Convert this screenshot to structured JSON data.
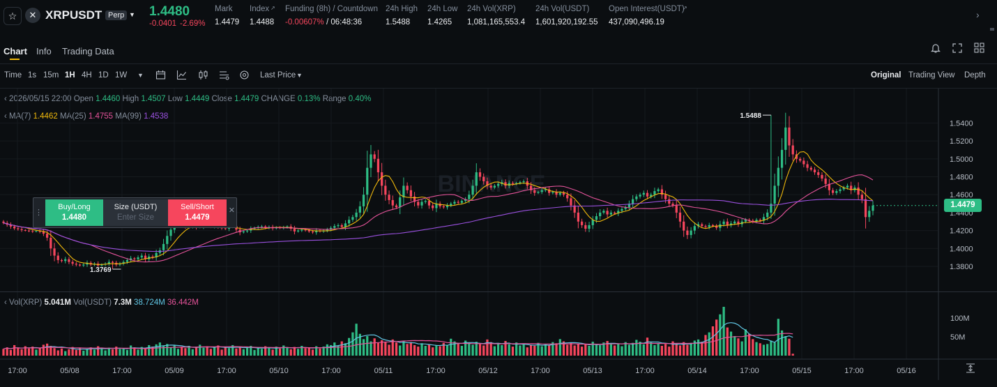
{
  "header": {
    "symbol": "XRPUSDT",
    "contract_type": "Perp",
    "last_price": "1.4480",
    "change_abs": "-0.0401",
    "change_pct": "-2.69%",
    "stats": [
      {
        "label": "Mark",
        "value": "1.4479"
      },
      {
        "label": "Index",
        "value": "1.4488"
      },
      {
        "label": "Funding (8h) / Countdown",
        "value": "-0.00607%",
        "value2": "/ 06:48:36"
      },
      {
        "label": "24h High",
        "value": "1.5488"
      },
      {
        "label": "24h Low",
        "value": "1.4265"
      },
      {
        "label": "24h Vol(XRP)",
        "value": "1,081,165,553.4"
      },
      {
        "label": "24h Vol(USDT)",
        "value": "1,601,920,192.55"
      },
      {
        "label": "Open Interest(USDT)",
        "value": "437,090,496.19"
      }
    ]
  },
  "tabs": [
    "Chart",
    "Info",
    "Trading Data"
  ],
  "toolbar": {
    "intervals": [
      "Time",
      "1s",
      "15m",
      "1H",
      "4H",
      "1D",
      "1W"
    ],
    "active_interval": "1H",
    "price_type": "Last Price",
    "views": [
      "Original",
      "Trading View",
      "Depth"
    ],
    "active_view": "Original"
  },
  "ohlc": {
    "date": "2026/05/15 22:00",
    "open_label": "Open",
    "open": "1.4460",
    "high_label": "High",
    "high": "1.4507",
    "low_label": "Low",
    "low": "1.4449",
    "close_label": "Close",
    "close": "1.4479",
    "change_label": "CHANGE",
    "change": "0.13%",
    "range_label": "Range",
    "range": "0.40%"
  },
  "ma": {
    "ma7_label": "MA(7)",
    "ma7": "1.4462",
    "ma25_label": "MA(25)",
    "ma25": "1.4755",
    "ma99_label": "MA(99)",
    "ma99": "1.4538"
  },
  "volume_legend": {
    "vol_xrp_label": "Vol(XRP)",
    "vol_xrp": "5.041M",
    "vol_usdt_label": "Vol(USDT)",
    "vol_usdt": "7.3M",
    "ma1": "38.724M",
    "ma2": "36.442M"
  },
  "trade_widget": {
    "buy_label": "Buy/Long",
    "buy_price": "1.4480",
    "size_label": "Size (USDT)",
    "size_placeholder": "Enter Size",
    "sell_label": "Sell/Short",
    "sell_price": "1.4479"
  },
  "price_axis": [
    "1.5400",
    "1.5200",
    "1.5000",
    "1.4800",
    "1.4600",
    "1.4400",
    "1.4200",
    "1.4000",
    "1.3800"
  ],
  "volume_axis": [
    "100M",
    "50M"
  ],
  "time_axis": [
    "17:00",
    "05/08",
    "17:00",
    "05/09",
    "17:00",
    "05/10",
    "17:00",
    "05/11",
    "17:00",
    "05/12",
    "17:00",
    "05/13",
    "17:00",
    "05/14",
    "17:00",
    "05/15",
    "17:00",
    "05/16"
  ],
  "current_price_tag": "1.4479",
  "high_marker": "1.5488",
  "low_marker": "1.3769",
  "watermark": "BINANCE",
  "colors": {
    "up": "#2ebd85",
    "down": "#f6465d",
    "ma7": "#f0b90b",
    "ma25": "#e5539a",
    "ma99": "#9b51e0",
    "vol_ma1": "#61c6e5",
    "vol_ma2": "#e5539a"
  },
  "chart_data": {
    "type": "candlestick",
    "interval": "1H",
    "x_start": "05/07 12:00",
    "ylim": [
      1.366,
      1.559
    ],
    "volume_ylim": [
      0,
      130000000
    ],
    "close": [
      1.4285,
      1.4265,
      1.4245,
      1.4225,
      1.4215,
      1.4205,
      1.42,
      1.4195,
      1.419,
      1.4195,
      1.4185,
      1.4165,
      1.412,
      1.4,
      1.392,
      1.387,
      1.386,
      1.388,
      1.385,
      1.383,
      1.382,
      1.381,
      1.382,
      1.384,
      1.382,
      1.383,
      1.381,
      1.382,
      1.383,
      1.385,
      1.384,
      1.382,
      1.383,
      1.385,
      1.387,
      1.389,
      1.388,
      1.39,
      1.392,
      1.388,
      1.391,
      1.39,
      1.395,
      1.398,
      1.405,
      1.414,
      1.421,
      1.425,
      1.426,
      1.425,
      1.424,
      1.424,
      1.425,
      1.4235,
      1.424,
      1.426,
      1.425,
      1.424,
      1.425,
      1.424,
      1.4225,
      1.422,
      1.424,
      1.425,
      1.421,
      1.418,
      1.419,
      1.42,
      1.422,
      1.423,
      1.424,
      1.4245,
      1.423,
      1.424,
      1.4225,
      1.4235,
      1.423,
      1.4235,
      1.4245,
      1.422,
      1.419,
      1.42,
      1.421,
      1.4205,
      1.419,
      1.418,
      1.42,
      1.419,
      1.42,
      1.421,
      1.423,
      1.425,
      1.426,
      1.424,
      1.428,
      1.432,
      1.435,
      1.44,
      1.447,
      1.46,
      1.49,
      1.505,
      1.5,
      1.485,
      1.47,
      1.46,
      1.454,
      1.448,
      1.446,
      1.457,
      1.47,
      1.465,
      1.458,
      1.452,
      1.448,
      1.452,
      1.453,
      1.448,
      1.445,
      1.45,
      1.447,
      1.446,
      1.448,
      1.45,
      1.452,
      1.451,
      1.453,
      1.455,
      1.46,
      1.47,
      1.485,
      1.48,
      1.475,
      1.47,
      1.468,
      1.47,
      1.472,
      1.474,
      1.47,
      1.473,
      1.472,
      1.473,
      1.474,
      1.475,
      1.47,
      1.465,
      1.462,
      1.463,
      1.465,
      1.466,
      1.462,
      1.463,
      1.46,
      1.462,
      1.46,
      1.456,
      1.448,
      1.44,
      1.43,
      1.426,
      1.422,
      1.426,
      1.432,
      1.436,
      1.44,
      1.442,
      1.438,
      1.44,
      1.439,
      1.442,
      1.444,
      1.446,
      1.45,
      1.455,
      1.458,
      1.46,
      1.462,
      1.458,
      1.46,
      1.464,
      1.466,
      1.46,
      1.455,
      1.45,
      1.448,
      1.44,
      1.43,
      1.42,
      1.415,
      1.42,
      1.425,
      1.427,
      1.425,
      1.424,
      1.426,
      1.425,
      1.423,
      1.427,
      1.43,
      1.426,
      1.428,
      1.43,
      1.427,
      1.43,
      1.432,
      1.431,
      1.43,
      1.432,
      1.431,
      1.435,
      1.44,
      1.45,
      1.47,
      1.49,
      1.51,
      1.535,
      1.515,
      1.505,
      1.5,
      1.498,
      1.494,
      1.49,
      1.488,
      1.485,
      1.482,
      1.478,
      1.472,
      1.465,
      1.462,
      1.464,
      1.466,
      1.468,
      1.47,
      1.465,
      1.468,
      1.46,
      1.455,
      1.435,
      1.442,
      1.4479
    ],
    "volume_m": [
      18,
      22,
      15,
      28,
      20,
      17,
      25,
      19,
      24,
      16,
      21,
      29,
      32,
      26,
      20,
      14,
      19,
      12,
      17,
      23,
      15,
      20,
      13,
      18,
      22,
      16,
      25,
      19,
      14,
      21,
      17,
      24,
      18,
      20,
      15,
      27,
      22,
      16,
      23,
      19,
      28,
      24,
      30,
      35,
      26,
      31,
      22,
      27,
      18,
      24,
      20,
      26,
      17,
      23,
      29,
      21,
      25,
      18,
      22,
      27,
      16,
      24,
      20,
      28,
      19,
      23,
      17,
      21,
      26,
      15,
      22,
      18,
      25,
      20,
      16,
      24,
      19,
      27,
      21,
      17,
      23,
      18,
      26,
      20,
      22,
      16,
      25,
      19,
      24,
      30,
      28,
      35,
      26,
      38,
      33,
      47,
      62,
      85,
      58,
      44,
      52,
      38,
      46,
      34,
      41,
      37,
      29,
      43,
      35,
      27,
      39,
      31,
      36,
      28,
      24,
      33,
      26,
      30,
      22,
      28,
      25,
      34,
      27,
      45,
      38,
      32,
      26,
      40,
      35,
      29,
      37,
      31,
      27,
      43,
      36,
      25,
      33,
      28,
      39,
      30,
      24,
      35,
      27,
      31,
      22,
      29,
      26,
      34,
      25,
      30,
      28,
      36,
      33,
      44,
      38,
      29,
      35,
      27,
      32,
      24,
      30,
      26,
      37,
      31,
      28,
      35,
      39,
      33,
      27,
      31,
      25,
      36,
      29,
      34,
      42,
      37,
      30,
      48,
      35,
      28,
      33,
      26,
      31,
      24,
      38,
      32,
      27,
      36,
      29,
      34,
      40,
      43,
      37,
      55,
      62,
      78,
      96,
      110,
      130,
      75,
      64,
      52,
      46,
      38,
      70,
      58,
      44,
      36,
      33,
      29,
      31,
      40,
      35,
      98,
      67,
      52,
      45,
      5.041
    ]
  }
}
